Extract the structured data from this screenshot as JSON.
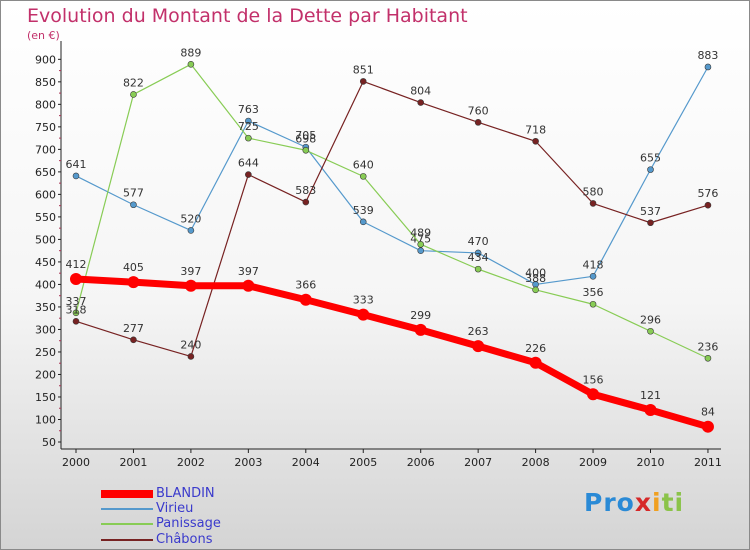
{
  "header": {
    "title": "Evolution du Montant de la Dette par Habitant",
    "unit": "(en €)"
  },
  "logo": {
    "letters": [
      "P",
      "r",
      "o",
      "x",
      "i",
      "t",
      "i"
    ],
    "colors": [
      "#2a8ad6",
      "#2a8ad6",
      "#2a8ad6",
      "#d62828",
      "#f0a020",
      "#8bc34a",
      "#8bc34a"
    ]
  },
  "chart_data": {
    "type": "line",
    "x": [
      "2000",
      "2001",
      "2002",
      "2003",
      "2004",
      "2005",
      "2006",
      "2007",
      "2008",
      "2009",
      "2010",
      "2011"
    ],
    "ylim": [
      50,
      900
    ],
    "yticks": [
      "900",
      "850",
      "800",
      "750",
      "700",
      "650",
      "600",
      "550",
      "500",
      "450",
      "400",
      "350",
      "300",
      "250",
      "200",
      "150",
      "100",
      "50"
    ],
    "grid": false,
    "legend_position": "bottom-left",
    "series": [
      {
        "name": "BLANDIN",
        "color": "#ff0000",
        "values": [
          412,
          405,
          397,
          397,
          366,
          333,
          299,
          263,
          226,
          156,
          121,
          84
        ]
      },
      {
        "name": "Virieu",
        "color": "#5599cc",
        "values": [
          641,
          577,
          520,
          763,
          705,
          539,
          475,
          470,
          400,
          418,
          655,
          883
        ]
      },
      {
        "name": "Panissage",
        "color": "#88cc55",
        "values": [
          337,
          822,
          889,
          725,
          698,
          640,
          489,
          434,
          388,
          356,
          296,
          236
        ]
      },
      {
        "name": "Châbons",
        "color": "#772222",
        "values": [
          318,
          277,
          240,
          644,
          583,
          851,
          804,
          760,
          718,
          580,
          537,
          576
        ]
      }
    ]
  }
}
